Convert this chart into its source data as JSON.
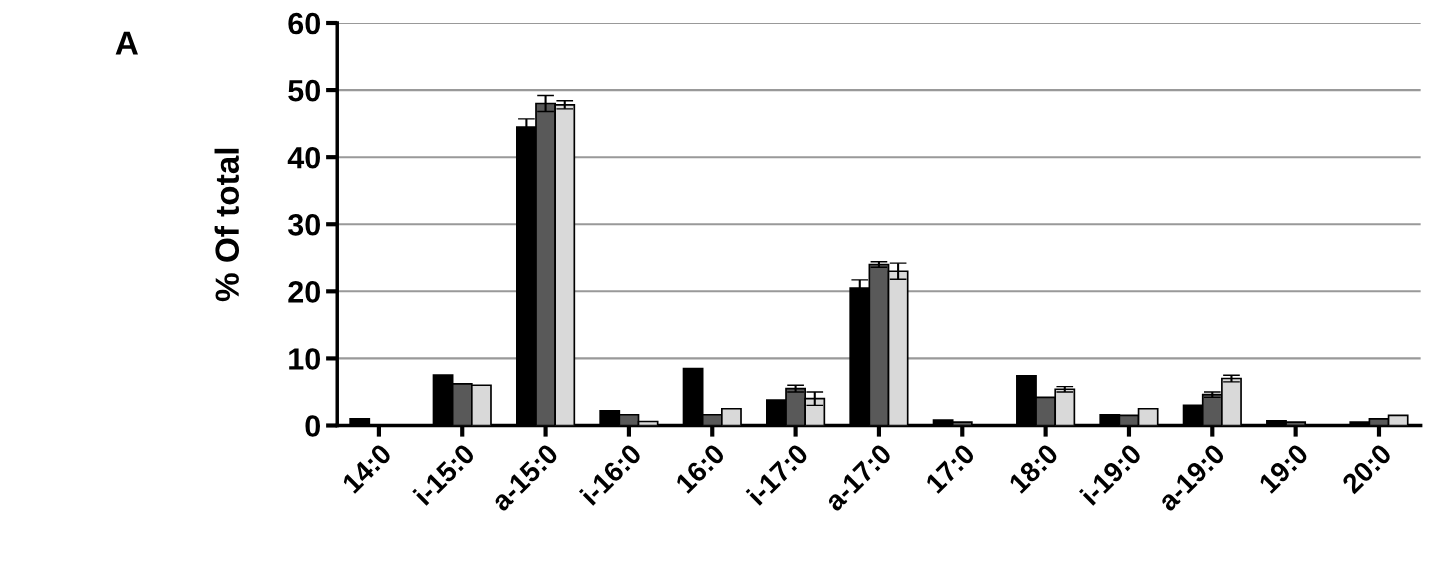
{
  "chart_data": {
    "type": "bar",
    "ylabel": "% Of total",
    "annotations": [
      "A"
    ],
    "categories": [
      "14:0",
      "i-15:0",
      "a-15:0",
      "i-16:0",
      "16:0",
      "i-17:0",
      "a-17:0",
      "17:0",
      "18:0",
      "i-19:0",
      "a-19:0",
      "19:0",
      "20:0"
    ],
    "series": [
      {
        "color": "#000000",
        "values": [
          1,
          7.5,
          44.5,
          2.2,
          8.5,
          3.8,
          20.5,
          0.8,
          7.4,
          1.6,
          3,
          0.7,
          0.5
        ],
        "errors": [
          null,
          null,
          1.2,
          null,
          null,
          null,
          1.2,
          null,
          null,
          null,
          null,
          null,
          null
        ]
      },
      {
        "color": "#595959",
        "values": [
          null,
          6.2,
          48,
          1.6,
          1.6,
          5.5,
          24,
          0.5,
          4.2,
          1.5,
          4.6,
          0.5,
          1
        ],
        "errors": [
          null,
          null,
          1.2,
          null,
          null,
          0.5,
          0.4,
          null,
          null,
          null,
          0.4,
          null,
          null
        ]
      },
      {
        "color": "#d9d9d9",
        "values": [
          null,
          6,
          47.8,
          0.6,
          2.5,
          4,
          23,
          null,
          5.4,
          2.5,
          7,
          null,
          1.5
        ],
        "errors": [
          null,
          null,
          0.6,
          null,
          null,
          1,
          1.2,
          null,
          0.4,
          null,
          0.5,
          null,
          null
        ]
      }
    ],
    "ylim": [
      0,
      60
    ],
    "yticks": [
      0,
      10,
      20,
      30,
      40,
      50,
      60
    ],
    "grid": "y",
    "legend": false
  }
}
